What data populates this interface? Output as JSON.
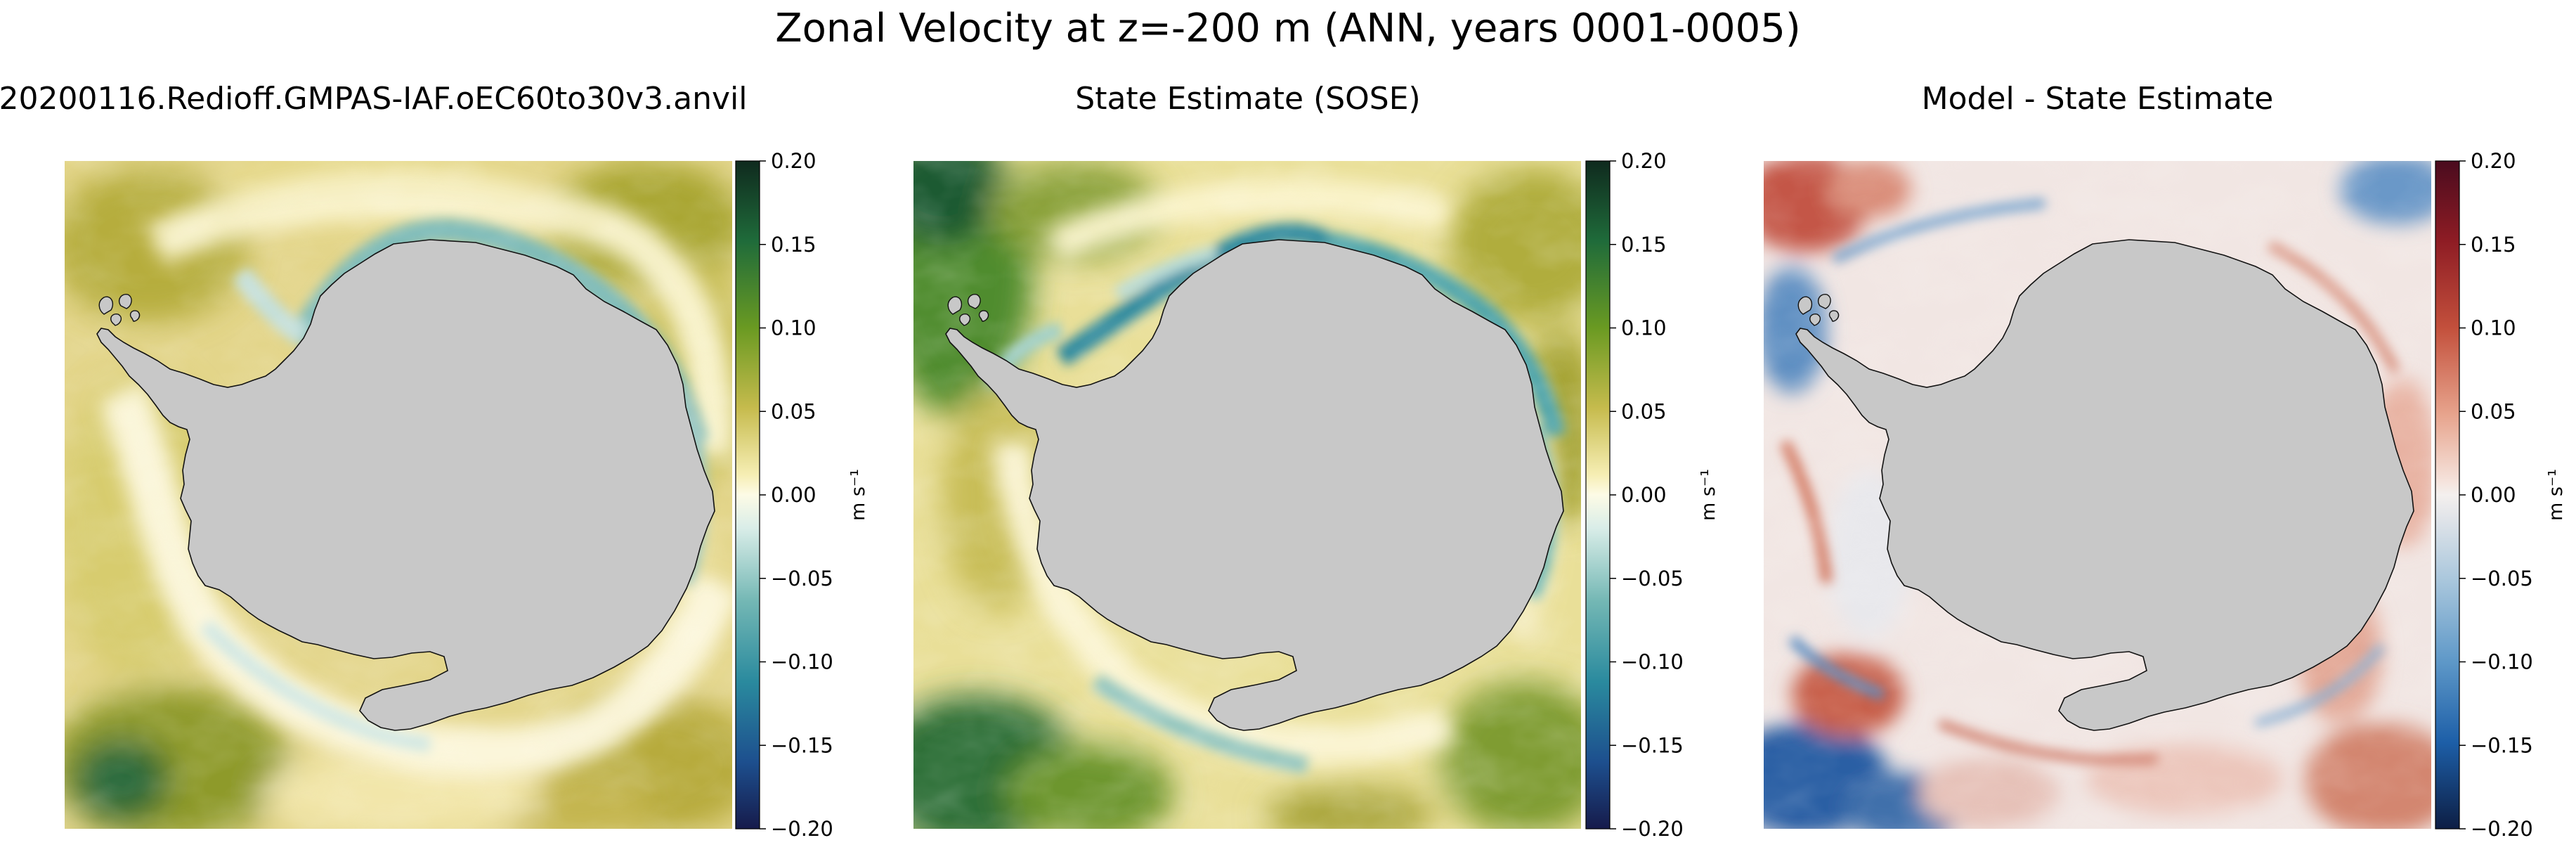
{
  "figure": {
    "title": "Zonal Velocity at z=-200 m (ANN, years 0001-0005)"
  },
  "chart_data": [
    {
      "type": "heatmap",
      "title": "20200116.Redioff.GMPAS-IAF.oEC60to30v3.anvil",
      "field": "zonal velocity",
      "colormap": "green-yellow-white-teal-blue (sequential diverging)",
      "colorbar": {
        "label": "m s⁻¹",
        "range": [
          -0.2,
          0.2
        ],
        "ticks": [
          "0.20",
          "0.15",
          "0.10",
          "0.05",
          "0.00",
          "−0.05",
          "−0.10",
          "−0.15",
          "−0.20"
        ]
      },
      "land_color": "#c8c8c8"
    },
    {
      "type": "heatmap",
      "title": "State Estimate (SOSE)",
      "field": "zonal velocity",
      "colormap": "green-yellow-white-teal-blue (sequential diverging)",
      "colorbar": {
        "label": "m s⁻¹",
        "range": [
          -0.2,
          0.2
        ],
        "ticks": [
          "0.20",
          "0.15",
          "0.10",
          "0.05",
          "0.00",
          "−0.05",
          "−0.10",
          "−0.15",
          "−0.20"
        ]
      },
      "land_color": "#c8c8c8"
    },
    {
      "type": "heatmap",
      "title": "Model - State Estimate",
      "field": "zonal velocity difference",
      "colormap": "red-white-blue (diverging)",
      "colorbar": {
        "label": "m s⁻¹",
        "range": [
          -0.2,
          0.2
        ],
        "ticks": [
          "0.20",
          "0.15",
          "0.10",
          "0.05",
          "0.00",
          "−0.05",
          "−0.10",
          "−0.15",
          "−0.20"
        ]
      },
      "land_color": "#c8c8c8"
    }
  ]
}
